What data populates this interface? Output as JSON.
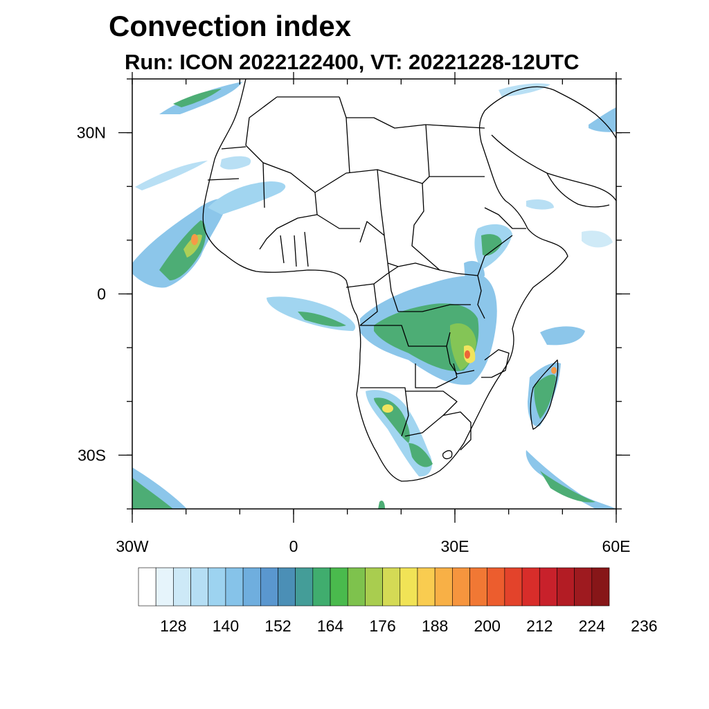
{
  "header": {
    "title": "Convection index",
    "subtitle": "Run: ICON 2022122400,  VT: 20221228-12UTC"
  },
  "map": {
    "lon_range": [
      -30,
      60
    ],
    "lat_range": [
      -40,
      40
    ],
    "lon_ticks": [
      {
        "value": -30,
        "label": "30W"
      },
      {
        "value": 0,
        "label": "0"
      },
      {
        "value": 30,
        "label": "30E"
      },
      {
        "value": 60,
        "label": "60E"
      }
    ],
    "lat_ticks": [
      {
        "value": 30,
        "label": "30N"
      },
      {
        "value": 0,
        "label": "0"
      },
      {
        "value": -30,
        "label": "30S"
      }
    ],
    "minor_lon_step": 10,
    "minor_lat_step": 10
  },
  "colorbar": {
    "colors": [
      "#ffffff",
      "#e6f4fb",
      "#cde9f7",
      "#b5def4",
      "#9dd3f0",
      "#86c3e9",
      "#6faede",
      "#5a97cf",
      "#4b8fb6",
      "#449d98",
      "#40ad6e",
      "#4aba4d",
      "#7ec24d",
      "#a9cd4f",
      "#d4da55",
      "#f1e356",
      "#f9cc50",
      "#f8b046",
      "#f6953e",
      "#f17834",
      "#ec5d2e",
      "#e3432b",
      "#d82d2a",
      "#c8212b",
      "#b31c24",
      "#9e1a1f",
      "#871618"
    ],
    "labels": [
      "128",
      "140",
      "152",
      "164",
      "176",
      "188",
      "200",
      "212",
      "224",
      "236"
    ]
  }
}
